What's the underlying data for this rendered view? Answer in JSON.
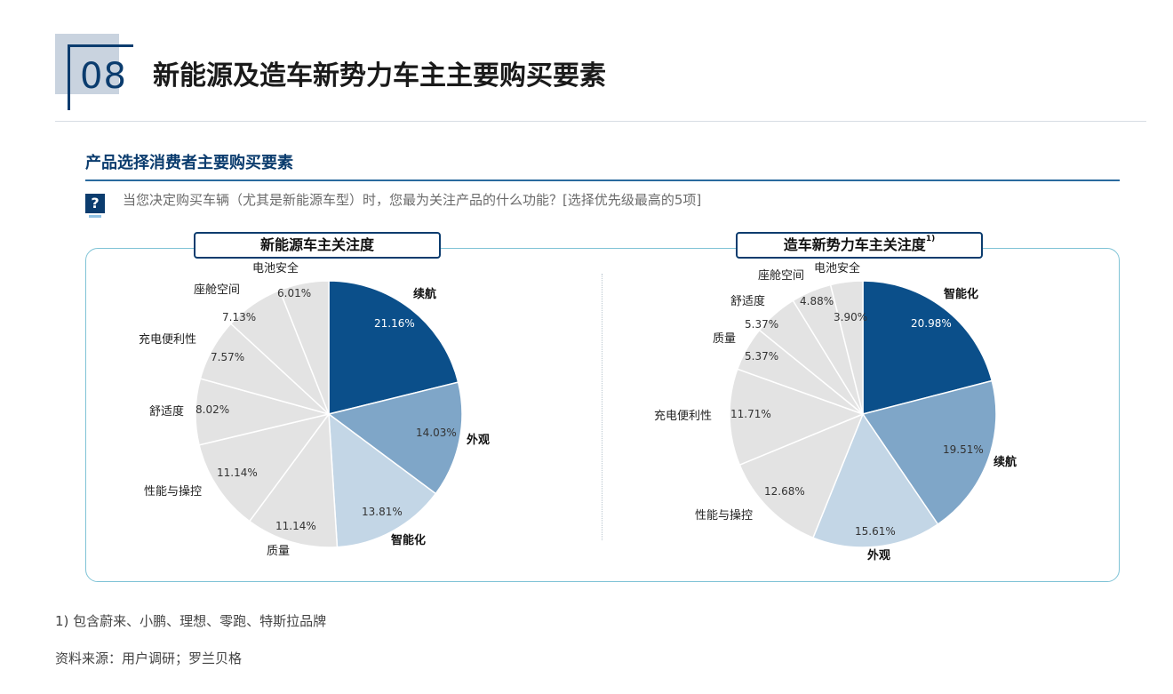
{
  "header": {
    "section_number": "08",
    "title": "新能源及造车新势力车主主要购买要素"
  },
  "subtitle": "产品选择消费者主要购买要素",
  "question": {
    "icon": "question-mark-icon",
    "text": "当您决定购买车辆（尤其是新能源车型）时，您最为关注产品的什么功能？[选择优先级最高的5项]"
  },
  "footnote": "1) 包含蔚来、小鹏、理想、零跑、特斯拉品牌",
  "source": "资料来源：用户调研；罗兰贝格",
  "chart_data": [
    {
      "type": "pie",
      "title": "新能源车主关注度",
      "title_footnote": "",
      "slices": [
        {
          "label": "续航",
          "value": 21.16,
          "value_label": "21.16%",
          "color": "#0b4f8a"
        },
        {
          "label": "外观",
          "value": 14.03,
          "value_label": "14.03%",
          "color": "#7fa6c8"
        },
        {
          "label": "智能化",
          "value": 13.81,
          "value_label": "13.81%",
          "color": "#c3d6e6"
        },
        {
          "label": "质量",
          "value": 11.14,
          "value_label": "11.14%",
          "color": "#e3e3e3"
        },
        {
          "label": "性能与操控",
          "value": 11.14,
          "value_label": "11.14%",
          "color": "#e3e3e3"
        },
        {
          "label": "舒适度",
          "value": 8.02,
          "value_label": "8.02%",
          "color": "#e3e3e3"
        },
        {
          "label": "充电便利性",
          "value": 7.57,
          "value_label": "7.57%",
          "color": "#e3e3e3"
        },
        {
          "label": "座舱空间",
          "value": 7.13,
          "value_label": "7.13%",
          "color": "#e3e3e3"
        },
        {
          "label": "电池安全",
          "value": 6.01,
          "value_label": "6.01%",
          "color": "#e3e3e3"
        }
      ]
    },
    {
      "type": "pie",
      "title": "造车新势力车主关注度",
      "title_footnote": "1)",
      "slices": [
        {
          "label": "智能化",
          "value": 20.98,
          "value_label": "20.98%",
          "color": "#0b4f8a"
        },
        {
          "label": "续航",
          "value": 19.51,
          "value_label": "19.51%",
          "color": "#7fa6c8"
        },
        {
          "label": "外观",
          "value": 15.61,
          "value_label": "15.61%",
          "color": "#c3d6e6"
        },
        {
          "label": "性能与操控",
          "value": 12.68,
          "value_label": "12.68%",
          "color": "#e3e3e3"
        },
        {
          "label": "充电便利性",
          "value": 11.71,
          "value_label": "11.71%",
          "color": "#e3e3e3"
        },
        {
          "label": "质量",
          "value": 5.37,
          "value_label": "5.37%",
          "color": "#e3e3e3"
        },
        {
          "label": "舒适度",
          "value": 5.37,
          "value_label": "5.37%",
          "color": "#e3e3e3"
        },
        {
          "label": "座舱空间",
          "value": 4.88,
          "value_label": "4.88%",
          "color": "#e3e3e3"
        },
        {
          "label": "电池安全",
          "value": 3.9,
          "value_label": "3.90%",
          "color": "#e3e3e3"
        }
      ]
    }
  ]
}
